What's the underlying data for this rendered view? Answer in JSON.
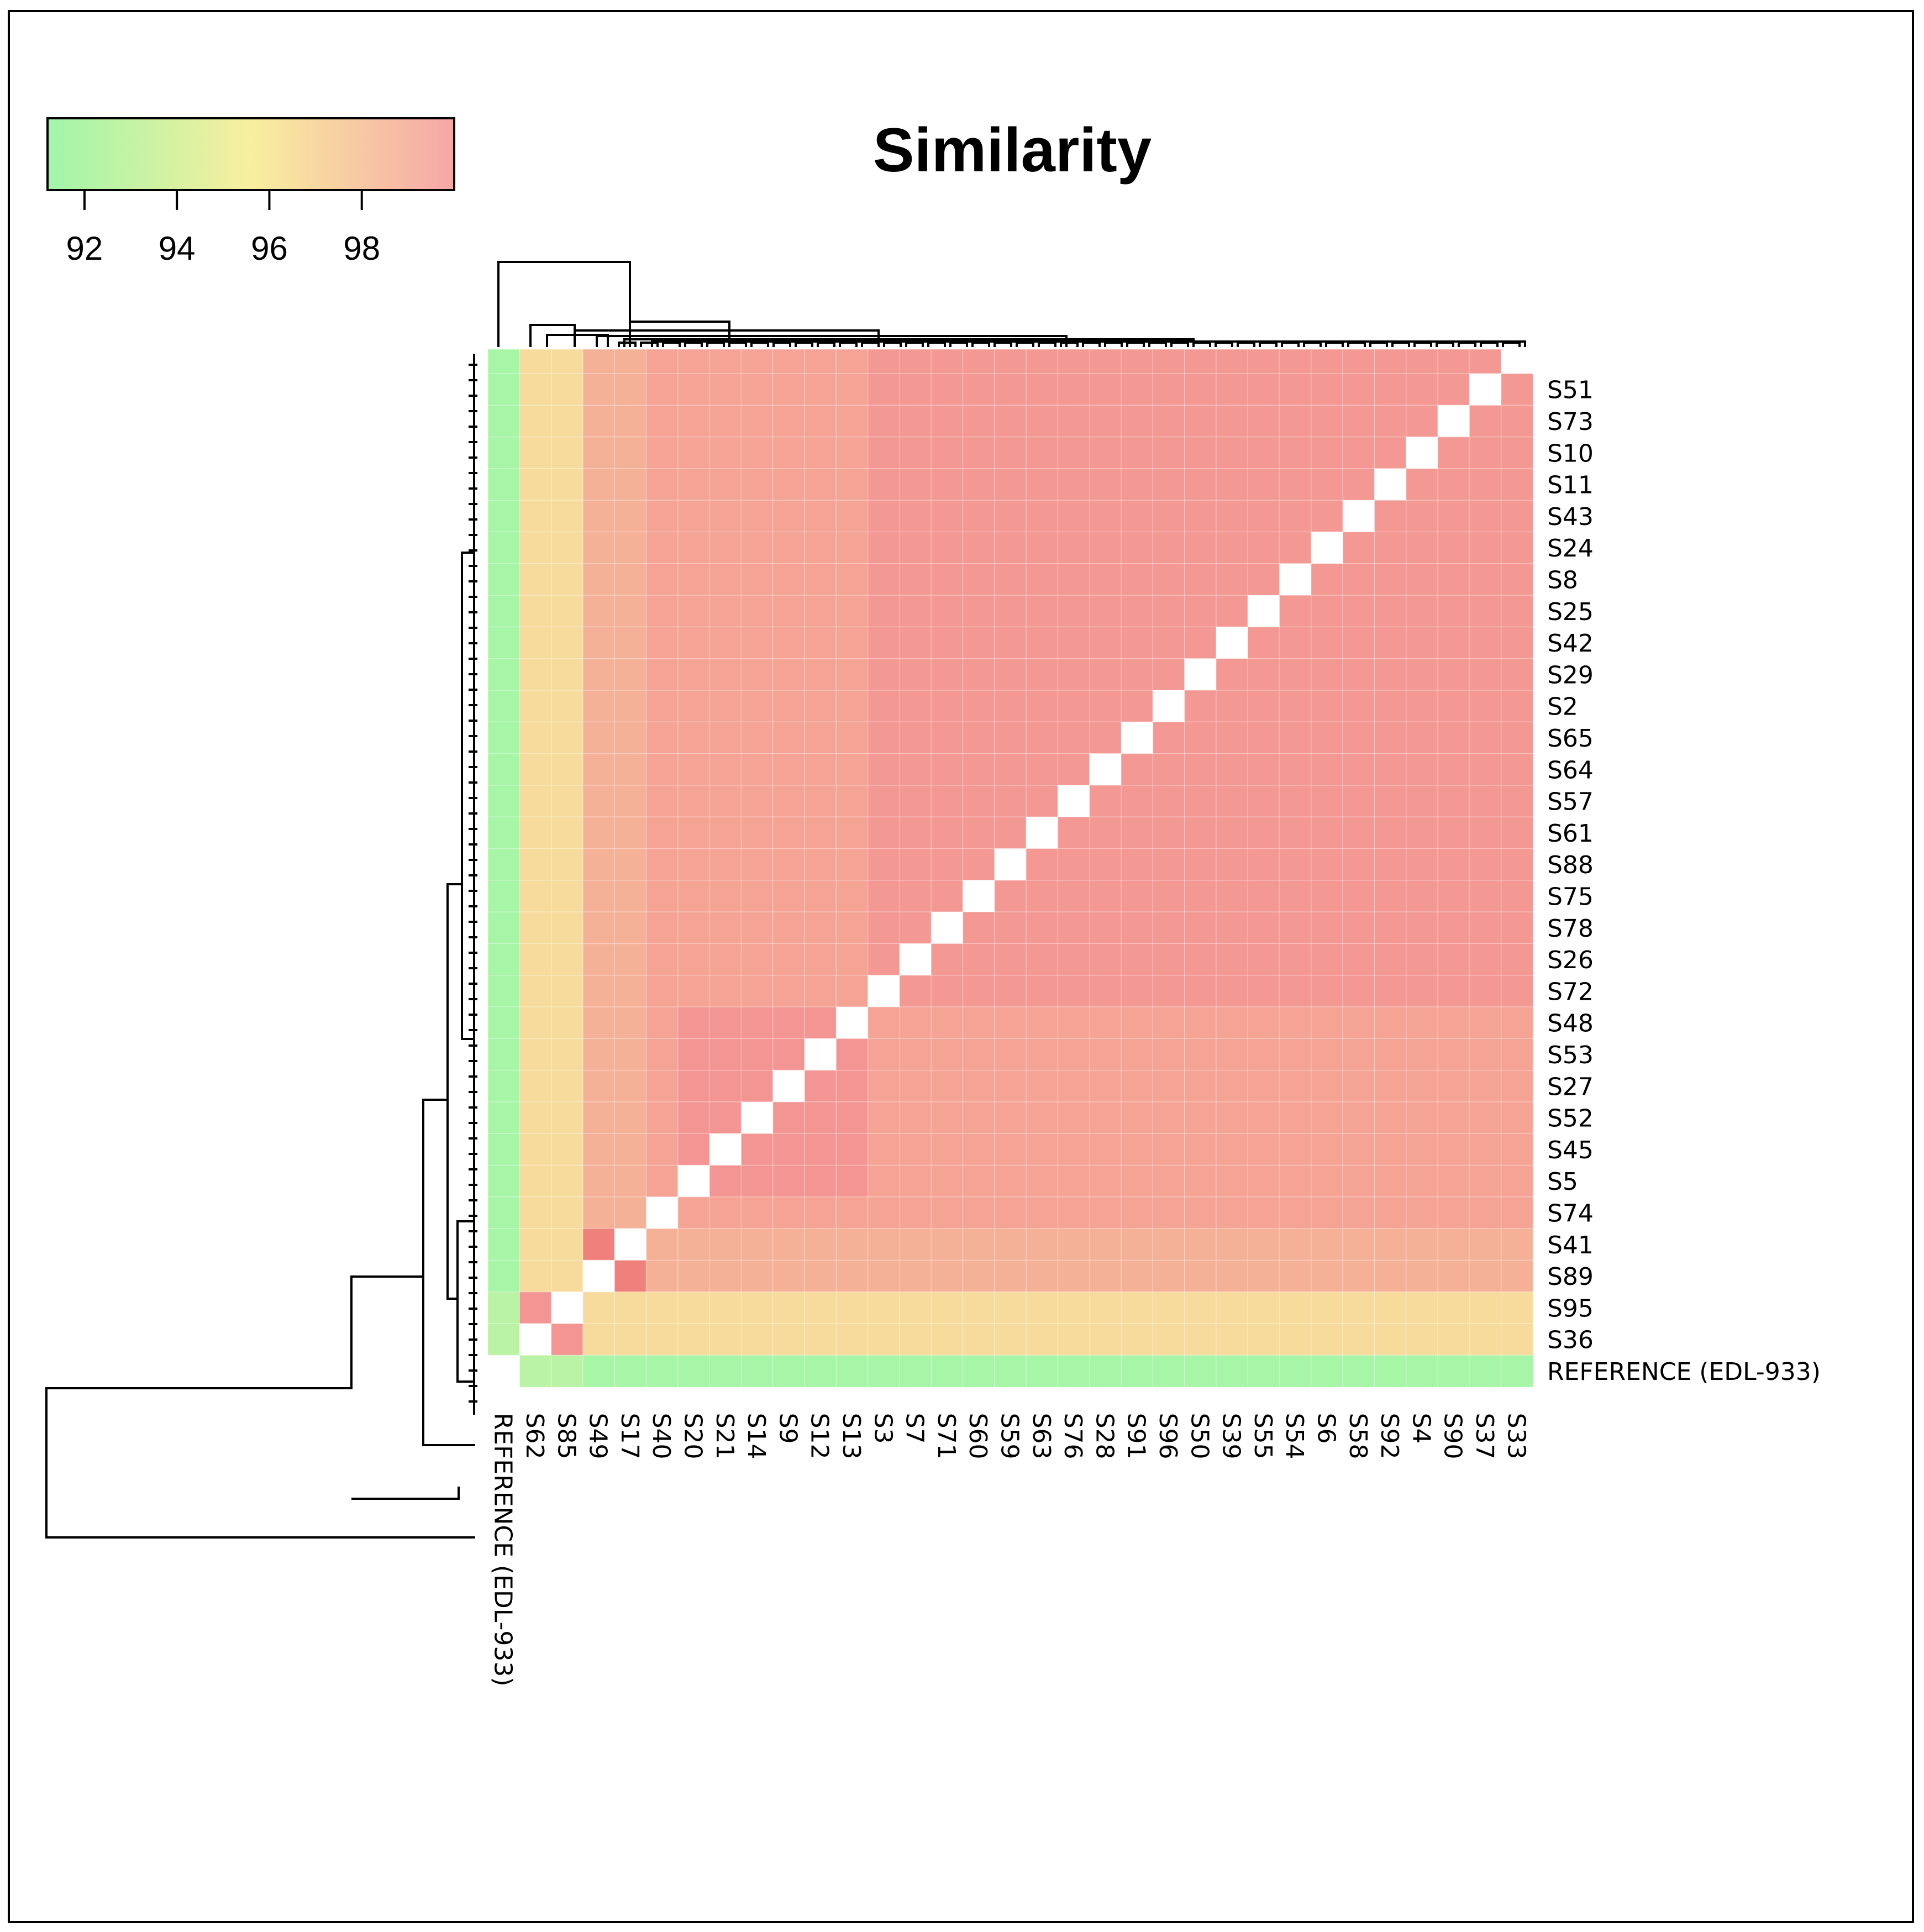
{
  "chart_data": {
    "type": "heatmap",
    "title": "Similarity",
    "color_scale": {
      "ticks": [
        92,
        94,
        96,
        98
      ],
      "min": 91.2,
      "max": 100,
      "colors": [
        "#a1f5a8",
        "#f8ef9f",
        "#f39593",
        "#f6a7a7"
      ]
    },
    "row_labels": [
      "S51",
      "S73",
      "S10",
      "S11",
      "S43",
      "S24",
      "S8",
      "S25",
      "S42",
      "S29",
      "S2",
      "S65",
      "S64",
      "S57",
      "S61",
      "S88",
      "S75",
      "S78",
      "S26",
      "S72",
      "S48",
      "S53",
      "S27",
      "S52",
      "S45",
      "S5",
      "S74",
      "S41",
      "S89",
      "S95",
      "S36",
      "REFERENCE (EDL-933)"
    ],
    "col_labels": [
      "REFERENCE (EDL-933)",
      "S62",
      "S85",
      "S49",
      "S17",
      "S40",
      "S20",
      "S21",
      "S14",
      "S9",
      "S12",
      "S13",
      "S3",
      "S7",
      "S71",
      "S60",
      "S59",
      "S63",
      "S76",
      "S28",
      "S91",
      "S96",
      "S50",
      "S39",
      "S55",
      "S54",
      "S6",
      "S58",
      "S92",
      "S4",
      "S90",
      "S37",
      "S33"
    ],
    "approx_values": {
      "reference_vs_all": 91.5,
      "s62_s85_vs_reference": 92.5,
      "s62_s85_vs_others": 96.5,
      "s62_vs_s85": 99.0,
      "s49_s17_vs_others": 98.0,
      "s49_vs_s17": 99.5,
      "core_cluster": 99.0,
      "typical_pair": 98.5
    }
  }
}
